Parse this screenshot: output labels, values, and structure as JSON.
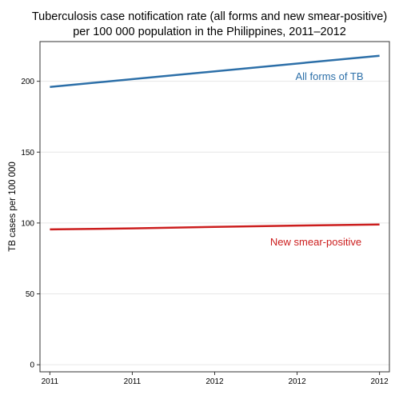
{
  "chart_data": {
    "type": "line",
    "title": "Tuberculosis case notification rate (all forms and new smear-positive)",
    "subtitle": "per 100 000 population in the Philippines, 2011–2012",
    "xlabel": "",
    "ylabel": "TB cases per 100 000",
    "x_tick_labels": [
      "2011",
      "2011",
      "2012",
      "2012",
      "2012"
    ],
    "x": [
      2011.0,
      2011.25,
      2011.5,
      2011.75,
      2012.0
    ],
    "xlim": [
      2010.97,
      2012.03
    ],
    "ylim": [
      -5,
      228
    ],
    "y_ticks": [
      0,
      50,
      100,
      150,
      200
    ],
    "grid": true,
    "legend": "direct labels on chart",
    "series": [
      {
        "name": "All forms of TB",
        "color": "#2c6fa8",
        "x": [
          2011.0,
          2012.0
        ],
        "values": [
          196,
          218
        ]
      },
      {
        "name": "New smear-positive",
        "color": "#cc1e1e",
        "x": [
          2011.0,
          2011.25,
          2011.5,
          2011.75,
          2012.0
        ],
        "values": [
          95.5,
          96.2,
          97.3,
          98.2,
          99.0
        ]
      }
    ]
  }
}
